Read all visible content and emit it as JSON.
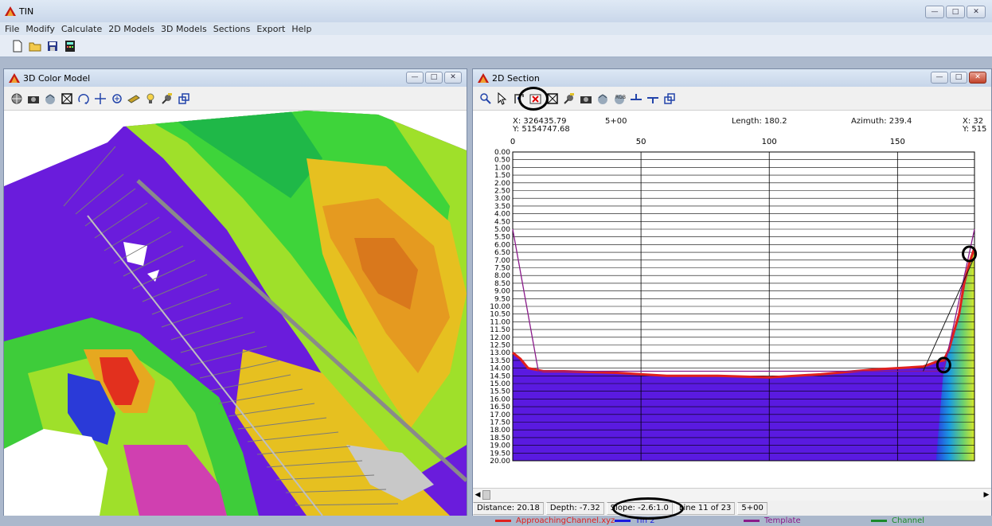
{
  "app": {
    "title": "TIN",
    "menu": [
      "File",
      "Modify",
      "Calculate",
      "2D Models",
      "3D Models",
      "Sections",
      "Export",
      "Help"
    ],
    "toolbar_icons": [
      "new-file-icon",
      "open-folder-icon",
      "save-icon",
      "calculator-icon"
    ]
  },
  "win3d": {
    "title": "3D Color Model",
    "toolbar_icons": [
      "globe-icon",
      "camera-icon",
      "render-icon",
      "zoom-extents-icon",
      "rotate-icon",
      "pan-icon",
      "zoom-icon",
      "light-icon",
      "bulb-icon",
      "settings-icon",
      "window-icon"
    ]
  },
  "win2d": {
    "title": "2D Section",
    "toolbar_icons": [
      "zoom-icon",
      "pointer-icon",
      "section-tool-icon",
      "delete-icon",
      "zoom-extents-icon",
      "settings-icon",
      "camera-icon",
      "render-icon",
      "texture-icon",
      "raise-icon",
      "lower-icon",
      "window-icon"
    ],
    "header": {
      "start_x": "X: 326435.79",
      "start_y": "Y: 5154747.68",
      "station": "5+00",
      "length": "Length: 180.2",
      "azimuth": "Azimuth: 239.4",
      "end_x": "X: 32",
      "end_y": "Y: 515"
    },
    "legend": [
      {
        "name": "ApproachingChannel.xyz",
        "color": "#e0201e"
      },
      {
        "name": "Tin 2",
        "color": "#1a1adf"
      },
      {
        "name": "Template",
        "color": "#8a1a8a"
      },
      {
        "name": "Channel",
        "color": "#1a8a2a"
      }
    ],
    "status": {
      "distance": "Distance: 20.18",
      "depth": "Depth: -7.32",
      "slope": "Slope: -2.6:1.0",
      "line": "Line 11 of 23",
      "station": "5+00"
    }
  },
  "chart_data": {
    "type": "line",
    "xlabel": "",
    "ylabel": "",
    "xlim": [
      0,
      180
    ],
    "ylim": [
      20,
      0
    ],
    "x_ticks": [
      "0",
      "50",
      "100",
      "150"
    ],
    "y_ticks": [
      "0.00",
      "0.50",
      "1.00",
      "1.50",
      "2.00",
      "2.50",
      "3.00",
      "3.50",
      "4.00",
      "4.50",
      "5.00",
      "5.50",
      "6.00",
      "6.50",
      "7.00",
      "7.50",
      "8.00",
      "8.50",
      "9.00",
      "9.50",
      "10.00",
      "10.50",
      "11.00",
      "11.50",
      "12.00",
      "12.50",
      "13.00",
      "13.50",
      "14.00",
      "14.50",
      "15.00",
      "15.50",
      "16.00",
      "16.50",
      "17.00",
      "17.50",
      "18.00",
      "18.50",
      "19.00",
      "19.50",
      "20.00"
    ],
    "series": [
      {
        "name": "ApproachingChannel.xyz",
        "x": [
          0,
          3,
          6,
          12,
          20,
          40,
          60,
          80,
          100,
          120,
          140,
          160,
          165,
          168,
          170,
          174,
          176,
          178,
          180
        ],
        "y": [
          13,
          13.4,
          14.0,
          14.2,
          14.2,
          14.3,
          14.5,
          14.5,
          14.6,
          14.4,
          14.1,
          13.9,
          13.6,
          13.5,
          12.8,
          10.5,
          8.5,
          7.2,
          6.2
        ]
      },
      {
        "name": "Template",
        "x": [
          0,
          10,
          160,
          168,
          180
        ],
        "y": [
          5,
          14.2,
          14.2,
          14.2,
          5
        ]
      },
      {
        "name": "Channel",
        "x": [
          160,
          180
        ],
        "y": [
          14.2,
          6.8
        ]
      }
    ]
  }
}
